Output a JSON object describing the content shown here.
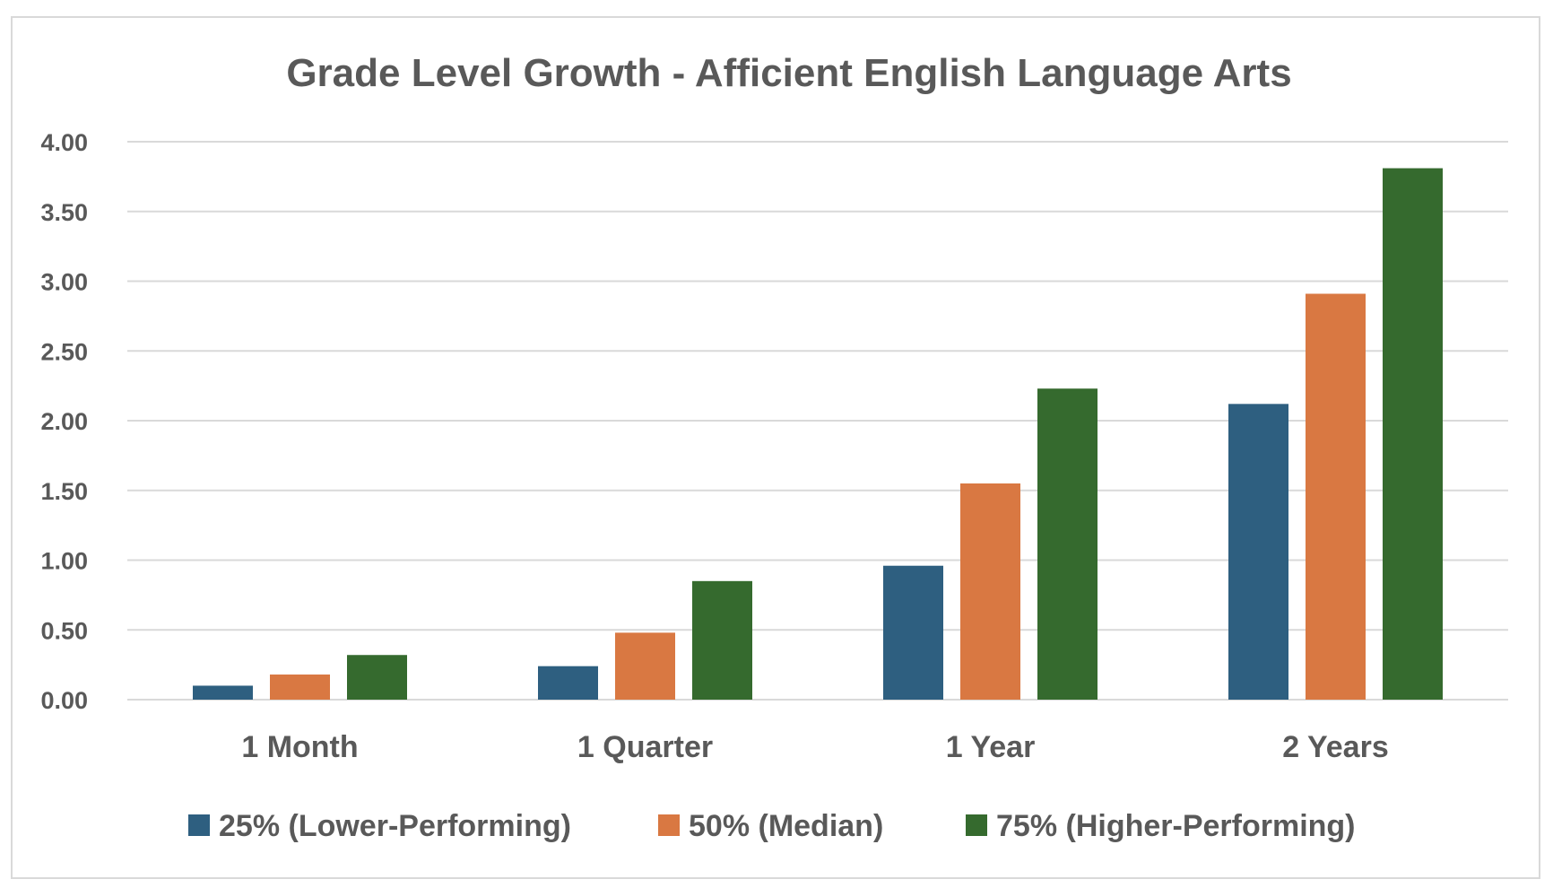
{
  "chart_data": {
    "type": "bar",
    "title": "Grade Level Growth - Afficient English Language Arts",
    "xlabel": "",
    "ylabel": "",
    "categories": [
      "1 Month",
      "1 Quarter",
      "1 Year",
      "2 Years"
    ],
    "series": [
      {
        "name": "25% (Lower-Performing)",
        "color": "#2e5f80",
        "values": [
          0.1,
          0.24,
          0.96,
          2.12
        ]
      },
      {
        "name": "50% (Median)",
        "color": "#d97842",
        "values": [
          0.18,
          0.48,
          1.55,
          2.91
        ]
      },
      {
        "name": "75% (Higher-Performing)",
        "color": "#356a2e",
        "values": [
          0.32,
          0.85,
          2.23,
          3.81
        ]
      }
    ],
    "ylim": [
      0,
      4
    ],
    "yticks": [
      "0.00",
      "0.50",
      "1.00",
      "1.50",
      "2.00",
      "2.50",
      "3.00",
      "3.50",
      "4.00"
    ],
    "grid": true,
    "legend_position": "bottom"
  }
}
